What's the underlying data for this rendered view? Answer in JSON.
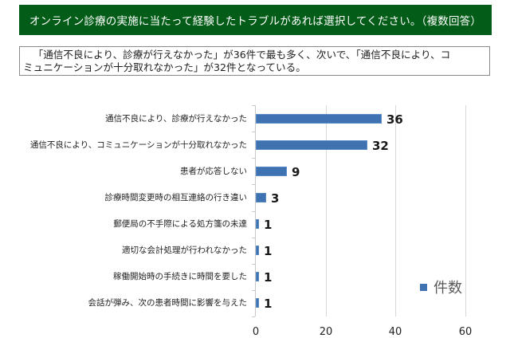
{
  "header": {
    "question": "オンライン診療の実施に当たって経験したトラブルがあれば選択してください。（複数回答）"
  },
  "summary": {
    "line1": "「通信不良により、診療が行えなかった」が36件で最も多く、次いで、「通信不良により、コ",
    "line2": "ミュニケーションが十分取れなかった」が32件となっている。"
  },
  "colors": {
    "banner": "#035c17",
    "bar": "#3f72b0",
    "legend_text": "#595959"
  },
  "chart_data": {
    "type": "bar",
    "orientation": "horizontal",
    "title": "オンライン診療の実施に当たって経験したトラブルがあれば選択してください。（複数回答）",
    "categories": [
      "通信不良により、診療が行えなかった",
      "通信不良により、コミュニケーションが十分取れなかった",
      "患者が応答しない",
      "診療時間変更時の相互連絡の行き違い",
      "郵便局の不手際による処方箋の未達",
      "適切な会計処理が行われなかった",
      "稼働開始時の手続きに時間を要した",
      "会話が弾み、次の患者時間に影響を与えた"
    ],
    "series": [
      {
        "name": "件数",
        "values": [
          36,
          32,
          9,
          3,
          1,
          1,
          1,
          1
        ]
      }
    ],
    "values": [
      36,
      32,
      9,
      3,
      1,
      1,
      1,
      1
    ],
    "xlabel": "",
    "ylabel": "",
    "xlim": [
      0,
      60
    ],
    "xticks": [
      "0",
      "20",
      "40",
      "60"
    ],
    "grid": true,
    "legend": {
      "position": "right",
      "entries": [
        "件数"
      ]
    },
    "data_labels": [
      "36",
      "32",
      "9",
      "3",
      "1",
      "1",
      "1",
      "1"
    ]
  }
}
